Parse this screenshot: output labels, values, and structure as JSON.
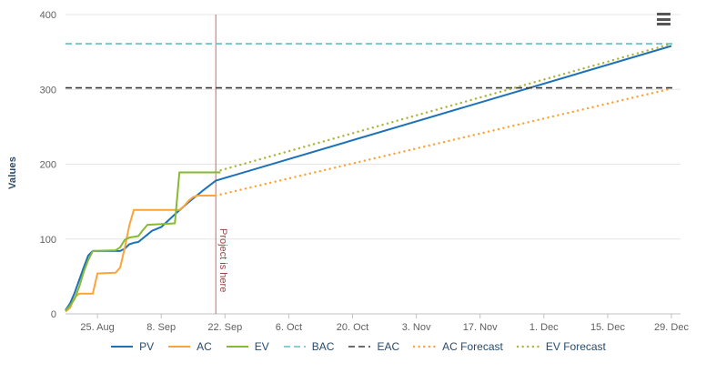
{
  "chart_data": {
    "type": "line",
    "title": "",
    "ylabel": "Values",
    "ylim": [
      0,
      400
    ],
    "yticks": [
      0,
      100,
      200,
      300,
      400
    ],
    "grid": true,
    "legend_position": "bottom",
    "x_axis": {
      "domain": [
        0,
        135
      ],
      "ticks": [
        {
          "day": 7,
          "label": "25. Aug"
        },
        {
          "day": 21,
          "label": "8. Sep"
        },
        {
          "day": 35,
          "label": "22. Sep"
        },
        {
          "day": 49,
          "label": "6. Oct"
        },
        {
          "day": 63,
          "label": "20. Oct"
        },
        {
          "day": 77,
          "label": "3. Nov"
        },
        {
          "day": 91,
          "label": "17. Nov"
        },
        {
          "day": 105,
          "label": "1. Dec"
        },
        {
          "day": 119,
          "label": "15. Dec"
        },
        {
          "day": 133,
          "label": "29. Dec"
        }
      ]
    },
    "plot_line": {
      "day": 33,
      "label": "Project is here",
      "line_color": "#cc6666",
      "label_color": "#994444"
    },
    "colors": {
      "grid": "#e6e6e6",
      "axis_line": "#c0c0c0",
      "axis_text": "#606060",
      "axis_title": "#274b6d",
      "legend_text": "#274b6d"
    },
    "series": [
      {
        "name": "PV",
        "color": "#1d71b8",
        "dash": "solid",
        "points": [
          [
            0,
            5
          ],
          [
            1,
            14
          ],
          [
            2,
            28
          ],
          [
            3,
            45
          ],
          [
            4,
            62
          ],
          [
            5,
            78
          ],
          [
            6,
            84
          ],
          [
            12,
            84
          ],
          [
            13,
            87
          ],
          [
            14,
            93
          ],
          [
            15,
            95
          ],
          [
            16,
            96
          ],
          [
            17,
            101
          ],
          [
            18,
            106
          ],
          [
            19,
            111
          ],
          [
            21,
            116
          ],
          [
            24,
            133
          ],
          [
            27,
            149
          ],
          [
            30,
            164
          ],
          [
            33,
            178
          ],
          [
            133,
            358
          ]
        ]
      },
      {
        "name": "AC",
        "color": "#faa43a",
        "dash": "solid",
        "points": [
          [
            0,
            3
          ],
          [
            1,
            8
          ],
          [
            2,
            22
          ],
          [
            3,
            27
          ],
          [
            6,
            27
          ],
          [
            7,
            54
          ],
          [
            11,
            55
          ],
          [
            12,
            62
          ],
          [
            13,
            88
          ],
          [
            14,
            118
          ],
          [
            15,
            139
          ],
          [
            25,
            139
          ],
          [
            26,
            144
          ],
          [
            27,
            151
          ],
          [
            28,
            156
          ],
          [
            29,
            158
          ],
          [
            33,
            158
          ]
        ]
      },
      {
        "name": "EV",
        "color": "#86ba32",
        "dash": "solid",
        "points": [
          [
            0,
            4
          ],
          [
            1,
            11
          ],
          [
            2,
            20
          ],
          [
            3,
            36
          ],
          [
            4,
            56
          ],
          [
            5,
            72
          ],
          [
            6,
            84
          ],
          [
            11,
            85
          ],
          [
            12,
            89
          ],
          [
            13,
            99
          ],
          [
            14,
            102
          ],
          [
            16,
            104
          ],
          [
            17,
            112
          ],
          [
            18,
            119
          ],
          [
            24,
            121
          ],
          [
            25,
            189
          ],
          [
            34,
            189
          ]
        ]
      },
      {
        "name": "BAC",
        "color": "#63bdc6",
        "dash": "dashed",
        "points": [
          [
            0,
            361
          ],
          [
            134,
            361
          ]
        ]
      },
      {
        "name": "EAC",
        "color": "#3a3a3a",
        "dash": "dashed",
        "points": [
          [
            0,
            302
          ],
          [
            134,
            302
          ]
        ]
      },
      {
        "name": "AC Forecast",
        "color": "#faa43a",
        "dash": "dotted",
        "points": [
          [
            33,
            158
          ],
          [
            133,
            301
          ]
        ]
      },
      {
        "name": "EV Forecast",
        "color": "#acb53b",
        "dash": "dotted",
        "points": [
          [
            33,
            190
          ],
          [
            133,
            361
          ]
        ]
      }
    ]
  },
  "toolbar": {
    "context_menu_icon": "hamburger-menu-icon"
  }
}
